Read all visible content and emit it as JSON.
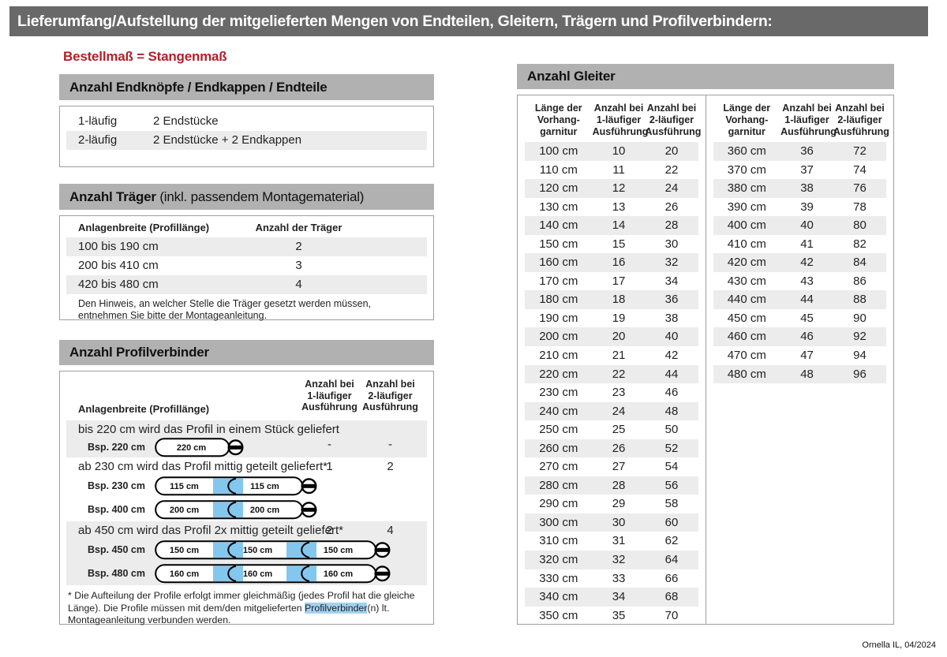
{
  "page": {
    "title": "Lieferumfang/Aufstellung der mitgelieferten Mengen von Endteilen, Gleitern, Trägern und Profilverbindern:",
    "subtitle": "Bestellmaß = Stangenmaß",
    "footer": "Ornella IL, 04/2024"
  },
  "colors": {
    "title_bar": "#696969",
    "section_bar": "#b1b1b1",
    "row_alt": "#ececec",
    "border": "#9e9e9e",
    "accent_red": "#b2202a",
    "connector_blue": "#84c7ee",
    "footnote_highlight": "#a2d2f0"
  },
  "endteile": {
    "title": "Anzahl Endknöpfe / Endkappen / Endteile",
    "rows": [
      {
        "label": "1-läufig",
        "value": "2 Endstücke"
      },
      {
        "label": "2-läufig",
        "value": "2 Endstücke + 2 Endkappen"
      }
    ]
  },
  "traeger": {
    "title_bold": "Anzahl Träger",
    "title_rest": " (inkl. passendem Montagematerial)",
    "col1": "Anlagenbreite (Profillänge)",
    "col2": "Anzahl der Träger",
    "rows": [
      {
        "range": "100 bis 190 cm",
        "count": "2"
      },
      {
        "range": "200 bis 410 cm",
        "count": "3"
      },
      {
        "range": "420 bis 480 cm",
        "count": "4"
      }
    ],
    "note": "Den Hinweis, an welcher Stelle die Träger gesetzt werden müssen, entnehmen Sie bitte der Montageanleitung."
  },
  "profilverbinder": {
    "title": "Anzahl Profilverbinder",
    "col1": "Anlagenbreite (Profillänge)",
    "col2": [
      "Anzahl bei",
      "1-läufiger",
      "Ausführung"
    ],
    "col3": [
      "Anzahl bei",
      "2-läufiger",
      "Ausführung"
    ],
    "rows": [
      {
        "text": "bis 220 cm wird das Profil in einem Stück geliefert",
        "v1": "-",
        "v2": "-",
        "examples": [
          {
            "label": "Bsp. 220 cm",
            "segments": [
              "220 cm"
            ]
          }
        ]
      },
      {
        "text": "ab 230 cm wird das Profil mittig geteilt geliefert*",
        "v1": "1",
        "v2": "2",
        "examples": [
          {
            "label": "Bsp. 230 cm",
            "segments": [
              "115 cm",
              "115 cm"
            ]
          },
          {
            "label": "Bsp. 400 cm",
            "segments": [
              "200 cm",
              "200 cm"
            ]
          }
        ]
      },
      {
        "text": "ab 450 cm wird das Profil 2x mittig geteilt geliefert*",
        "v1": "2",
        "v2": "4",
        "examples": [
          {
            "label": "Bsp. 450 cm",
            "segments": [
              "150 cm",
              "150 cm",
              "150 cm"
            ]
          },
          {
            "label": "Bsp. 480 cm",
            "segments": [
              "160 cm",
              "160 cm",
              "160 cm"
            ]
          }
        ]
      }
    ],
    "footnote": {
      "pre": "* Die Aufteilung der Profile erfolgt immer gleichmäßig (jedes Profil hat die gleiche Länge). Die Profile müssen mit dem/den mitgelieferten ",
      "highlight": "Profilverbinder",
      "post": "(n) lt. Montageanleitung verbunden werden."
    }
  },
  "gleiter": {
    "title": "Anzahl Gleiter",
    "columns": [
      [
        "Länge der",
        "Vorhang-",
        "garnitur"
      ],
      [
        "Anzahl bei",
        "1-läufiger",
        "Ausführung"
      ],
      [
        "Anzahl bei",
        "2-läufiger",
        "Ausführung"
      ]
    ],
    "left_rows": [
      [
        "100 cm",
        "10",
        "20"
      ],
      [
        "110 cm",
        "11",
        "22"
      ],
      [
        "120 cm",
        "12",
        "24"
      ],
      [
        "130 cm",
        "13",
        "26"
      ],
      [
        "140 cm",
        "14",
        "28"
      ],
      [
        "150 cm",
        "15",
        "30"
      ],
      [
        "160 cm",
        "16",
        "32"
      ],
      [
        "170 cm",
        "17",
        "34"
      ],
      [
        "180 cm",
        "18",
        "36"
      ],
      [
        "190 cm",
        "19",
        "38"
      ],
      [
        "200 cm",
        "20",
        "40"
      ],
      [
        "210 cm",
        "21",
        "42"
      ],
      [
        "220 cm",
        "22",
        "44"
      ],
      [
        "230 cm",
        "23",
        "46"
      ],
      [
        "240 cm",
        "24",
        "48"
      ],
      [
        "250 cm",
        "25",
        "50"
      ],
      [
        "260 cm",
        "26",
        "52"
      ],
      [
        "270 cm",
        "27",
        "54"
      ],
      [
        "280 cm",
        "28",
        "56"
      ],
      [
        "290 cm",
        "29",
        "58"
      ],
      [
        "300 cm",
        "30",
        "60"
      ],
      [
        "310 cm",
        "31",
        "62"
      ],
      [
        "320 cm",
        "32",
        "64"
      ],
      [
        "330 cm",
        "33",
        "66"
      ],
      [
        "340 cm",
        "34",
        "68"
      ],
      [
        "350 cm",
        "35",
        "70"
      ]
    ],
    "right_rows": [
      [
        "360 cm",
        "36",
        "72"
      ],
      [
        "370 cm",
        "37",
        "74"
      ],
      [
        "380 cm",
        "38",
        "76"
      ],
      [
        "390 cm",
        "39",
        "78"
      ],
      [
        "400 cm",
        "40",
        "80"
      ],
      [
        "410 cm",
        "41",
        "82"
      ],
      [
        "420 cm",
        "42",
        "84"
      ],
      [
        "430 cm",
        "43",
        "86"
      ],
      [
        "440 cm",
        "44",
        "88"
      ],
      [
        "450 cm",
        "45",
        "90"
      ],
      [
        "460 cm",
        "46",
        "92"
      ],
      [
        "470 cm",
        "47",
        "94"
      ],
      [
        "480 cm",
        "48",
        "96"
      ]
    ]
  }
}
